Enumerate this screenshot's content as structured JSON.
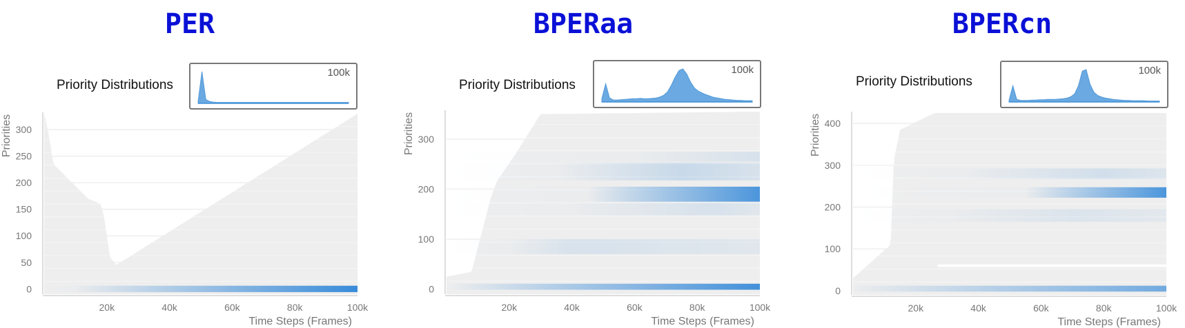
{
  "colors": {
    "title": "#0a10d6",
    "heat": "#2f86d8",
    "background_band": "#eeeeee",
    "inset_fill": "#5aa0de",
    "grid": "#f2f2f2"
  },
  "chart_data": [
    {
      "type": "heatmap",
      "title": "PER",
      "subtitle": "Priority Distributions",
      "inset_label": "100k",
      "xlabel": "Time Steps (Frames)",
      "ylabel": "Priorities",
      "xlim": [
        0,
        100000
      ],
      "ylim": [
        -10,
        330
      ],
      "x_ticks": [
        20000,
        40000,
        60000,
        80000,
        100000
      ],
      "x_tick_labels": [
        "20k",
        "40k",
        "60k",
        "80k",
        "100k"
      ],
      "y_ticks": [
        0,
        50,
        100,
        150,
        200,
        250,
        300
      ],
      "y_tick_labels": [
        "0",
        "50",
        "100",
        "150",
        "200",
        "250",
        "300"
      ],
      "coverage_max": [
        [
          0,
          330
        ],
        [
          1000,
          305
        ],
        [
          3000,
          235
        ],
        [
          14000,
          170
        ],
        [
          18000,
          160
        ],
        [
          19000,
          140
        ],
        [
          21000,
          60
        ],
        [
          23000,
          45
        ],
        [
          100000,
          330
        ]
      ],
      "bands": [
        {
          "y": 0,
          "height": 12,
          "x_start": 10000,
          "peak_x": 100000,
          "peak": 0.95
        }
      ],
      "inset": {
        "peak_x": 0.02,
        "distribution": [
          0.05,
          1.0,
          0.12,
          0.06,
          0.04,
          0.03,
          0.03,
          0.03,
          0.03,
          0.03,
          0.03,
          0.03,
          0.03,
          0.03,
          0.03,
          0.03,
          0.03,
          0.03,
          0.03,
          0.03,
          0.03,
          0.03,
          0.03,
          0.03,
          0.03,
          0.03,
          0.03,
          0.03,
          0.03,
          0.03,
          0.03,
          0.03,
          0.03,
          0.03,
          0.03,
          0.03,
          0.03,
          0.03,
          0.03,
          0.03
        ]
      }
    },
    {
      "type": "heatmap",
      "title": "BPERaa",
      "subtitle": "Priority Distributions",
      "inset_label": "100k",
      "xlabel": "Time Steps (Frames)",
      "ylabel": "Priorities",
      "xlim": [
        0,
        100000
      ],
      "ylim": [
        -10,
        355
      ],
      "x_ticks": [
        20000,
        40000,
        60000,
        80000,
        100000
      ],
      "x_tick_labels": [
        "20k",
        "40k",
        "60k",
        "80k",
        "100k"
      ],
      "y_ticks": [
        0,
        100,
        200,
        300
      ],
      "y_tick_labels": [
        "0",
        "100",
        "200",
        "300"
      ],
      "coverage_max": [
        [
          0,
          25
        ],
        [
          8000,
          35
        ],
        [
          14000,
          180
        ],
        [
          16000,
          215
        ],
        [
          22000,
          270
        ],
        [
          30000,
          350
        ],
        [
          100000,
          355
        ]
      ],
      "bands": [
        {
          "y": 5,
          "height": 12,
          "x_start": 2000,
          "peak_x": 100000,
          "peak": 0.9
        },
        {
          "y": 190,
          "height": 30,
          "x_start": 45000,
          "peak_x": 100000,
          "peak": 0.85
        },
        {
          "y": 235,
          "height": 35,
          "x_start": 35000,
          "peak_x": 75000,
          "peak": 0.2
        },
        {
          "y": 265,
          "height": 20,
          "x_start": 60000,
          "peak_x": 100000,
          "peak": 0.12
        },
        {
          "y": 160,
          "height": 25,
          "x_start": 40000,
          "peak_x": 85000,
          "peak": 0.12
        },
        {
          "y": 85,
          "height": 30,
          "x_start": 20000,
          "peak_x": 40000,
          "peak": 0.12
        }
      ],
      "inset": {
        "peak_x": 0.55,
        "distribution": [
          0.1,
          0.55,
          0.12,
          0.06,
          0.06,
          0.07,
          0.08,
          0.09,
          0.1,
          0.1,
          0.11,
          0.1,
          0.1,
          0.11,
          0.12,
          0.15,
          0.2,
          0.3,
          0.5,
          0.75,
          0.95,
          1.0,
          0.85,
          0.6,
          0.42,
          0.33,
          0.27,
          0.22,
          0.18,
          0.14,
          0.12,
          0.1,
          0.08,
          0.07,
          0.06,
          0.05,
          0.05,
          0.04,
          0.04,
          0.04
        ]
      }
    },
    {
      "type": "heatmap",
      "title": "BPERcn",
      "subtitle": "Priority Distributions",
      "inset_label": "100k",
      "xlabel": "Time Steps (Frames)",
      "ylabel": "Priorities",
      "xlim": [
        0,
        100000
      ],
      "ylim": [
        -10,
        425
      ],
      "x_ticks": [
        20000,
        40000,
        60000,
        80000,
        100000
      ],
      "x_tick_labels": [
        "20k",
        "40k",
        "60k",
        "80k",
        "100k"
      ],
      "y_ticks": [
        0,
        100,
        200,
        300,
        400
      ],
      "y_tick_labels": [
        "0",
        "100",
        "200",
        "300",
        "400"
      ],
      "coverage_max": [
        [
          0,
          30
        ],
        [
          12000,
          110
        ],
        [
          13000,
          310
        ],
        [
          15000,
          385
        ],
        [
          26000,
          425
        ],
        [
          100000,
          425
        ]
      ],
      "gap": {
        "y": 60,
        "height": 6,
        "x_start": 27000
      },
      "bands": [
        {
          "y": 5,
          "height": 14,
          "x_start": 1000,
          "peak_x": 100000,
          "peak": 0.65
        },
        {
          "y": 235,
          "height": 25,
          "x_start": 55000,
          "peak_x": 100000,
          "peak": 0.85
        },
        {
          "y": 280,
          "height": 25,
          "x_start": 35000,
          "peak_x": 80000,
          "peak": 0.15
        },
        {
          "y": 180,
          "height": 30,
          "x_start": 30000,
          "peak_x": 70000,
          "peak": 0.1
        }
      ],
      "inset": {
        "peak_x": 0.52,
        "distribution": [
          0.05,
          0.5,
          0.08,
          0.05,
          0.05,
          0.05,
          0.06,
          0.06,
          0.07,
          0.07,
          0.08,
          0.08,
          0.08,
          0.09,
          0.1,
          0.12,
          0.16,
          0.25,
          0.5,
          0.95,
          1.0,
          0.55,
          0.3,
          0.2,
          0.15,
          0.12,
          0.1,
          0.08,
          0.07,
          0.06,
          0.05,
          0.05,
          0.04,
          0.04,
          0.04,
          0.04,
          0.03,
          0.03,
          0.03,
          0.03
        ]
      }
    }
  ]
}
